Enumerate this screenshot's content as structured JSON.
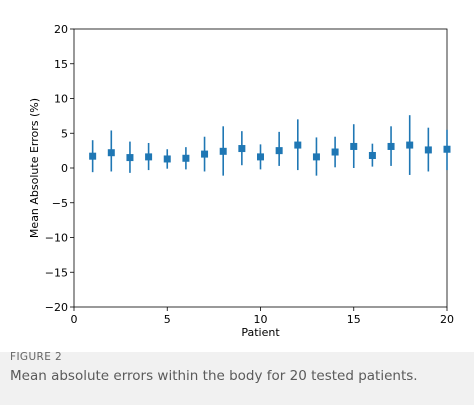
{
  "figure": {
    "label": "FIGURE 2",
    "caption": "Mean absolute errors within the body for 20 tested patients."
  },
  "chart_data": {
    "type": "scatter",
    "xlabel": "Patient",
    "ylabel": "Mean Absolute Errors (%)",
    "xlim": [
      0,
      20
    ],
    "ylim": [
      -20,
      20
    ],
    "xticks": [
      0,
      5,
      10,
      15,
      20
    ],
    "yticks": [
      -20,
      -15,
      -10,
      -5,
      0,
      5,
      10,
      15,
      20
    ],
    "grid": false,
    "color": "#1f77b4",
    "series": [
      {
        "x": [
          1,
          2,
          3,
          4,
          5,
          6,
          7,
          8,
          9,
          10,
          11,
          12,
          13,
          14,
          15,
          16,
          17,
          18,
          19,
          20
        ],
        "y": [
          1.7,
          2.2,
          1.5,
          1.6,
          1.3,
          1.4,
          2.0,
          2.4,
          2.8,
          1.6,
          2.5,
          3.3,
          1.6,
          2.3,
          3.1,
          1.8,
          3.1,
          3.3,
          2.6,
          2.7
        ],
        "yerr_low": [
          -0.6,
          -0.5,
          -0.7,
          -0.3,
          -0.1,
          -0.2,
          -0.5,
          -1.1,
          0.4,
          -0.2,
          0.3,
          -0.3,
          -1.1,
          0.1,
          0.0,
          0.2,
          0.3,
          -1.0,
          -0.5,
          -0.3
        ],
        "yerr_high": [
          4.0,
          5.4,
          3.8,
          3.6,
          2.7,
          3.0,
          4.5,
          6.0,
          5.3,
          3.4,
          5.2,
          7.0,
          4.4,
          4.5,
          6.3,
          3.5,
          6.0,
          7.6,
          5.8,
          5.5
        ]
      }
    ]
  }
}
